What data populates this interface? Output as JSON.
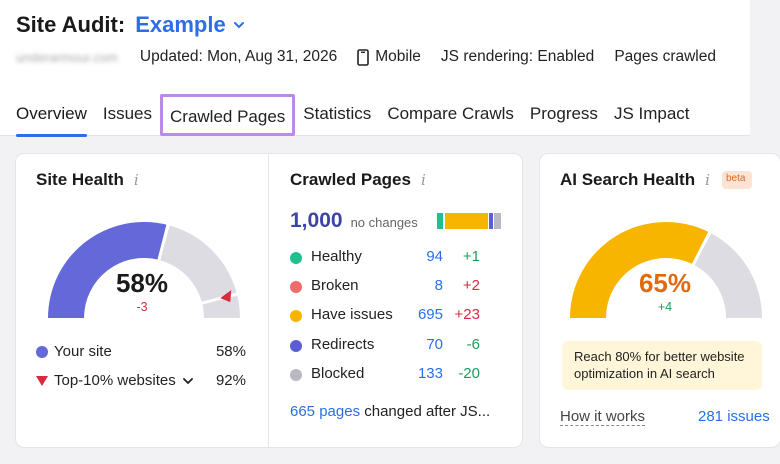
{
  "header": {
    "title": "Site Audit:",
    "project": "Example",
    "domain_blurred": "underarmour.com",
    "updated": "Updated: Mon, Aug 31, 2026",
    "device": "Mobile",
    "js_rendering": "JS rendering: Enabled",
    "pages_crawled": "Pages crawled"
  },
  "tabs": [
    {
      "label": "Overview",
      "active": true
    },
    {
      "label": "Issues"
    },
    {
      "label": "Crawled Pages",
      "highlighted": true
    },
    {
      "label": "Statistics"
    },
    {
      "label": "Compare Crawls"
    },
    {
      "label": "Progress"
    },
    {
      "label": "JS Impact"
    }
  ],
  "site_health": {
    "title": "Site Health",
    "info": "i",
    "value": "58%",
    "value_fraction": 0.58,
    "delta": "-3",
    "top10_fraction": 0.92,
    "legend": [
      {
        "label": "Your site",
        "value": "58%"
      },
      {
        "label": "Top-10% websites",
        "value": "92%"
      }
    ]
  },
  "crawled_pages": {
    "title": "Crawled Pages",
    "info": "i",
    "total": "1,000",
    "total_note": "no changes",
    "rows": [
      {
        "label": "Healthy",
        "count": "94",
        "diff": "+1",
        "color": "#1fbf8f",
        "diff_color": "#1b9e5a",
        "share": 0.094
      },
      {
        "label": "Broken",
        "count": "8",
        "diff": "+2",
        "color": "#f06b6b",
        "diff_color": "#d72b3f",
        "share": 0.008
      },
      {
        "label": "Have issues",
        "count": "695",
        "diff": "+23",
        "color": "#f7b500",
        "diff_color": "#d72b3f",
        "share": 0.695
      },
      {
        "label": "Redirects",
        "count": "70",
        "diff": "-6",
        "color": "#5b5fd4",
        "diff_color": "#1b9e5a",
        "share": 0.07
      },
      {
        "label": "Blocked",
        "count": "133",
        "diff": "-20",
        "color": "#b9b9c1",
        "diff_color": "#1b9e5a",
        "share": 0.133
      }
    ],
    "changed_link": "665 pages",
    "changed_text": " changed after JS..."
  },
  "ai_search": {
    "title": "AI Search Health",
    "info": "i",
    "beta": "beta",
    "value": "65%",
    "value_fraction": 0.65,
    "delta": "+4",
    "notice_line1": "Reach 80% for better website",
    "notice_line2": "optimization in AI search",
    "how_it_works": "How it works",
    "issues_link": "281 issues"
  },
  "colors": {
    "accent": "#2b6ee8",
    "health_arc": "#6468d8",
    "ai_arc": "#f7b500",
    "track": "#dcdce2",
    "negative": "#d72b3f",
    "positive": "#1b9e5a",
    "ai_value": "#e06a10"
  }
}
